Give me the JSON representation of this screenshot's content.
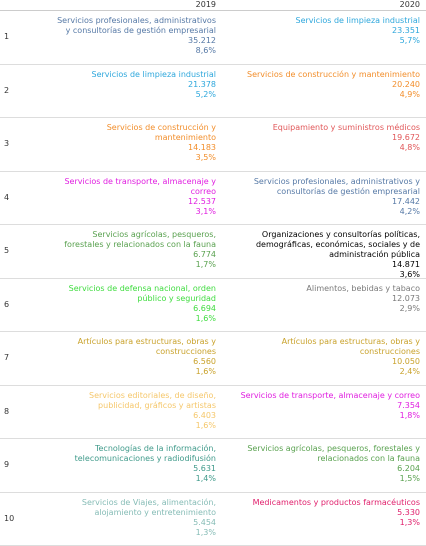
{
  "table": {
    "columns": [
      "2019",
      "2020"
    ],
    "rows": [
      {
        "rank": "1",
        "y2019": {
          "name": "Servicios profesionales, administrativos y consultorías de gestión empresarial",
          "value": "35.212",
          "share": "8,6%",
          "color": "#5679a6"
        },
        "y2020": {
          "name": "Servicios de limpieza industrial",
          "value": "23.351",
          "share": "5,7%",
          "color": "#2ea7dc"
        }
      },
      {
        "rank": "2",
        "y2019": {
          "name": "Servicios de limpieza industrial",
          "value": "21.378",
          "share": "5,2%",
          "color": "#2ea7dc"
        },
        "y2020": {
          "name": "Servicios de construcción y mantenimiento",
          "value": "20.240",
          "share": "4,9%",
          "color": "#f28e2b"
        }
      },
      {
        "rank": "3",
        "y2019": {
          "name": "Servicios de construcción y mantenimiento",
          "value": "14.183",
          "share": "3,5%",
          "color": "#f28e2b"
        },
        "y2020": {
          "name": "Equipamiento y suministros médicos",
          "value": "19.672",
          "share": "4,8%",
          "color": "#e15759"
        }
      },
      {
        "rank": "4",
        "y2019": {
          "name": "Servicios de transporte, almacenaje y correo",
          "value": "12.537",
          "share": "3,1%",
          "color": "#e01ee0"
        },
        "y2020": {
          "name": "Servicios profesionales, administrativos y consultorías de gestión empresarial",
          "value": "17.442",
          "share": "4,2%",
          "color": "#5679a6"
        }
      },
      {
        "rank": "5",
        "y2019": {
          "name": "Servicios agrícolas, pesqueros, forestales y relacionados con la fauna",
          "value": "6.774",
          "share": "1,7%",
          "color": "#59a14f"
        },
        "y2020": {
          "name": "Organizaciones y consultorías políticas, demográficas, económicas, sociales y de administración pública",
          "value": "14.871",
          "share": "3,6%",
          "color": "#000000"
        }
      },
      {
        "rank": "6",
        "y2019": {
          "name": "Servicios de defensa nacional, orden público y seguridad",
          "value": "6.694",
          "share": "1,6%",
          "color": "#3fdc3f"
        },
        "y2020": {
          "name": "Alimentos, bebidas y tabaco",
          "value": "12.073",
          "share": "2,9%",
          "color": "#7a7a7a"
        }
      },
      {
        "rank": "7",
        "y2019": {
          "name": "Artículos para estructuras, obras y construcciones",
          "value": "6.560",
          "share": "1,6%",
          "color": "#c9a22b"
        },
        "y2020": {
          "name": "Artículos para estructuras, obras y construcciones",
          "value": "10.050",
          "share": "2,4%",
          "color": "#c9a22b"
        }
      },
      {
        "rank": "8",
        "y2019": {
          "name": "Servicios editoriales, de diseño, publicidad, gráficos y artistas",
          "value": "6.403",
          "share": "1,6%",
          "color": "#f5c76b"
        },
        "y2020": {
          "name": "Servicios de transporte, almacenaje y correo",
          "value": "7.354",
          "share": "1,8%",
          "color": "#e01ee0"
        }
      },
      {
        "rank": "9",
        "y2019": {
          "name": "Tecnologías de la información, telecomunicaciones y radiodifusión",
          "value": "5.631",
          "share": "1,4%",
          "color": "#3f9a8a"
        },
        "y2020": {
          "name": "Servicios agrícolas, pesqueros, forestales y relacionados con la fauna",
          "value": "6.204",
          "share": "1,5%",
          "color": "#59a14f"
        }
      },
      {
        "rank": "10",
        "y2019": {
          "name": "Servicios de Viajes, alimentación, alojamiento y entretenimiento",
          "value": "5.454",
          "share": "1,3%",
          "color": "#86bcb6"
        },
        "y2020": {
          "name": "Medicamentos y productos farmacéuticos",
          "value": "5.330",
          "share": "1,3%",
          "color": "#e0206c"
        }
      }
    ]
  }
}
